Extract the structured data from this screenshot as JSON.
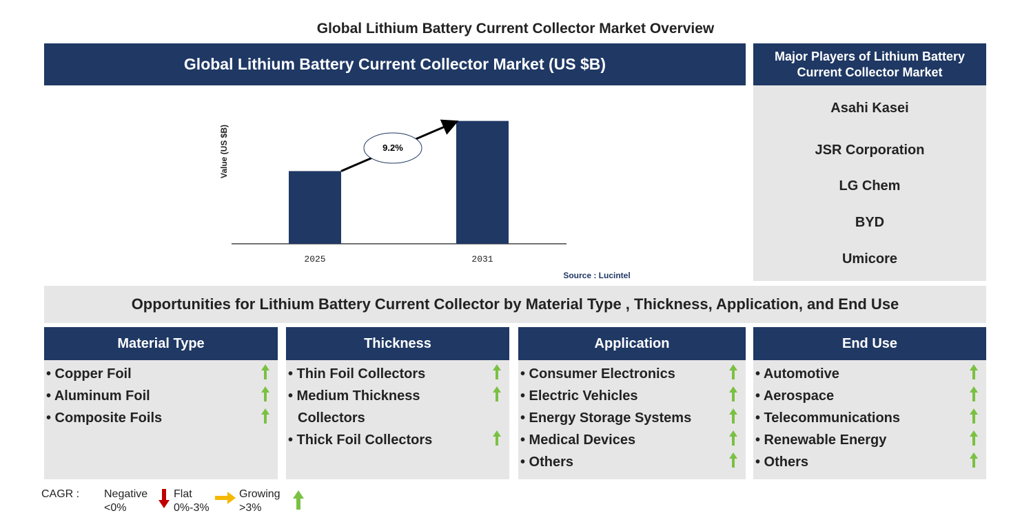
{
  "title": "Global Lithium Battery Current Collector Market Overview",
  "chart_panel": {
    "header": "Global Lithium Battery Current Collector Market (US $B)",
    "chart_data": {
      "type": "bar",
      "y_label": "Value (US $B)",
      "categories": [
        "2025",
        "2031"
      ],
      "values": [
        1.0,
        1.69
      ],
      "ylim": [
        0,
        1.8
      ],
      "color": "#1f3864",
      "cagr": "9.2%"
    },
    "source": "Source : Lucintel"
  },
  "players": {
    "header": "Major Players of Lithium Battery Current Collector Market",
    "items": [
      "Asahi Kasei",
      "JSR Corporation",
      "LG Chem",
      "BYD",
      "Umicore"
    ]
  },
  "opportunities": {
    "title": "Opportunities for Lithium Battery Current Collector by Material Type , Thickness, Application, and End Use",
    "segments": [
      {
        "header": "Material Type",
        "items": [
          "Copper Foil",
          "Aluminum Foil",
          "Composite Foils"
        ]
      },
      {
        "header": "Thickness",
        "items": [
          "Thin Foil Collectors",
          "Medium Thickness Collectors",
          "Thick Foil Collectors"
        ]
      },
      {
        "header": "Application",
        "items": [
          "Consumer Electronics",
          "Electric Vehicles",
          "Energy Storage Systems",
          "Medical Devices",
          "Others"
        ]
      },
      {
        "header": "End Use",
        "items": [
          "Automotive",
          "Aerospace",
          "Telecommunications",
          "Renewable Energy",
          "Others"
        ]
      }
    ]
  },
  "legend": {
    "label": "CAGR :",
    "negative": {
      "name": "Negative",
      "range": "<0%"
    },
    "flat": {
      "name": "Flat",
      "range": "0%-3%"
    },
    "growing": {
      "name": "Growing",
      "range": ">3%"
    }
  }
}
